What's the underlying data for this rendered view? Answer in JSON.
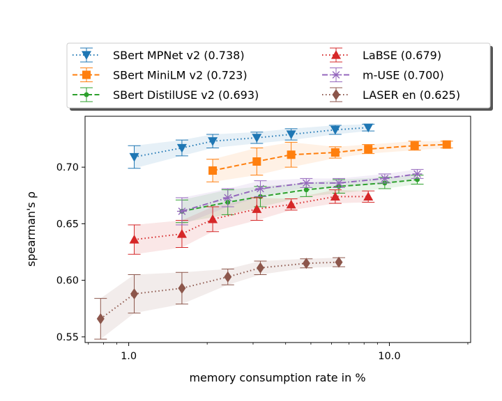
{
  "chart_data": {
    "type": "line",
    "xscale": "log",
    "xlabel": "memory consumption rate in %",
    "ylabel": "spearman's ρ",
    "xlim": [
      0.68,
      20.5
    ],
    "ylim": [
      0.545,
      0.745
    ],
    "xticks": [
      {
        "value": 1.0,
        "label": "1.0"
      },
      {
        "value": 10.0,
        "label": "10.0"
      }
    ],
    "yticks": [
      {
        "value": 0.55,
        "label": "0.55"
      },
      {
        "value": 0.6,
        "label": "0.60"
      },
      {
        "value": 0.65,
        "label": "0.65"
      },
      {
        "value": 0.7,
        "label": "0.70"
      }
    ],
    "legend_position": "top",
    "series": [
      {
        "name": "SBert MPNet v2 (0.738)",
        "color": "#1f77b4",
        "linestyle": "dotted",
        "marker": "triangle-down",
        "x": [
          1.05,
          1.6,
          2.1,
          3.1,
          4.2,
          6.2,
          8.3
        ],
        "y": [
          0.709,
          0.717,
          0.723,
          0.726,
          0.729,
          0.733,
          0.735
        ],
        "err": [
          0.01,
          0.007,
          0.006,
          0.005,
          0.005,
          0.004,
          0.003
        ]
      },
      {
        "name": "SBert MiniLM v2 (0.723)",
        "color": "#ff7f0e",
        "linestyle": "dashed",
        "marker": "square",
        "x": [
          2.1,
          3.1,
          4.2,
          6.2,
          8.3,
          12.5,
          16.6
        ],
        "y": [
          0.697,
          0.705,
          0.711,
          0.713,
          0.716,
          0.719,
          0.72
        ],
        "err": [
          0.01,
          0.012,
          0.011,
          0.005,
          0.004,
          0.004,
          0.003
        ]
      },
      {
        "name": "SBert DistilUSE v2 (0.693)",
        "color": "#2ca02c",
        "linestyle": "dashed",
        "marker": "point",
        "x": [
          1.6,
          2.4,
          3.2,
          4.8,
          6.4,
          9.6,
          12.8
        ],
        "y": [
          0.661,
          0.669,
          0.674,
          0.68,
          0.683,
          0.686,
          0.689
        ],
        "err": [
          0.01,
          0.011,
          0.009,
          0.006,
          0.006,
          0.005,
          0.004
        ]
      },
      {
        "name": "LaBSE (0.679)",
        "color": "#d62728",
        "linestyle": "dotted",
        "marker": "triangle-up",
        "x": [
          1.05,
          1.6,
          2.1,
          3.1,
          4.2,
          6.2,
          8.3
        ],
        "y": [
          0.636,
          0.641,
          0.654,
          0.663,
          0.667,
          0.674,
          0.674
        ],
        "err": [
          0.013,
          0.012,
          0.011,
          0.01,
          0.005,
          0.006,
          0.005
        ]
      },
      {
        "name": "m-USE (0.700)",
        "color": "#9467bd",
        "linestyle": "dashdot",
        "marker": "x-star",
        "x": [
          1.6,
          2.4,
          3.2,
          4.8,
          6.4,
          9.6,
          12.8
        ],
        "y": [
          0.661,
          0.673,
          0.681,
          0.686,
          0.686,
          0.69,
          0.694
        ],
        "err": [
          0.012,
          0.008,
          0.007,
          0.004,
          0.004,
          0.004,
          0.004
        ]
      },
      {
        "name": "LASER en (0.625)",
        "color": "#8c564b",
        "linestyle": "dotted",
        "marker": "diamond",
        "x": [
          0.78,
          1.05,
          1.6,
          2.4,
          3.2,
          4.8,
          6.4
        ],
        "y": [
          0.566,
          0.588,
          0.593,
          0.603,
          0.611,
          0.615,
          0.616
        ],
        "err": [
          0.018,
          0.017,
          0.014,
          0.007,
          0.006,
          0.004,
          0.004
        ]
      }
    ]
  }
}
